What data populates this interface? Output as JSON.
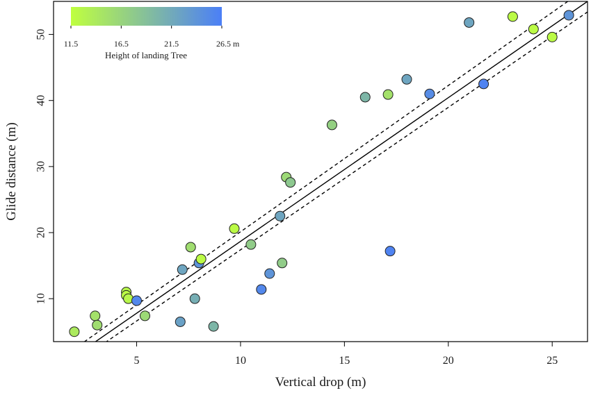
{
  "chart_data": {
    "type": "scatter",
    "title": "",
    "xlabel": "Vertical drop (m)",
    "ylabel": "Glide distance (m)",
    "xlim": [
      1.0,
      26.7
    ],
    "ylim": [
      3.5,
      55.0
    ],
    "xticks": [
      5,
      10,
      15,
      20,
      25
    ],
    "yticks": [
      10,
      20,
      30,
      40,
      50
    ],
    "grid": false,
    "colorbar": {
      "title": "Height of landing Tree",
      "tick_values": [
        11.5,
        16.5,
        21.5,
        26.5
      ],
      "tick_labels": [
        "11.5",
        "16.5",
        "21.5",
        "26.5 m"
      ],
      "range": [
        11.5,
        26.5
      ],
      "colors": [
        "#bfff3f",
        "#4b7ff7"
      ],
      "placement": "top-left"
    },
    "fit_line": {
      "x": [
        1.0,
        26.7
      ],
      "y": [
        -0.9,
        55.0
      ]
    },
    "fit_bands": [
      {
        "x": [
          1.0,
          26.7
        ],
        "y": [
          0.2,
          57.1
        ]
      },
      {
        "x": [
          1.0,
          26.7
        ],
        "y": [
          -2.0,
          53.4
        ]
      }
    ],
    "points": [
      {
        "x": 2.0,
        "y": 5.0,
        "h": 14.0
      },
      {
        "x": 3.0,
        "y": 7.4,
        "h": 15.0
      },
      {
        "x": 3.1,
        "y": 6.0,
        "h": 15.5
      },
      {
        "x": 4.5,
        "y": 11.0,
        "h": 12.5
      },
      {
        "x": 4.5,
        "y": 10.5,
        "h": 12.0
      },
      {
        "x": 4.6,
        "y": 10.0,
        "h": 12.5
      },
      {
        "x": 5.0,
        "y": 9.7,
        "h": 25.5
      },
      {
        "x": 5.4,
        "y": 7.4,
        "h": 16.0
      },
      {
        "x": 7.1,
        "y": 6.5,
        "h": 22.5
      },
      {
        "x": 7.2,
        "y": 14.4,
        "h": 22.0
      },
      {
        "x": 7.6,
        "y": 17.8,
        "h": 15.5
      },
      {
        "x": 7.8,
        "y": 10.0,
        "h": 21.0
      },
      {
        "x": 8.0,
        "y": 15.4,
        "h": 24.0
      },
      {
        "x": 8.1,
        "y": 16.0,
        "h": 12.0
      },
      {
        "x": 8.7,
        "y": 5.8,
        "h": 20.0
      },
      {
        "x": 9.7,
        "y": 20.6,
        "h": 12.0
      },
      {
        "x": 10.5,
        "y": 18.2,
        "h": 17.5
      },
      {
        "x": 11.0,
        "y": 11.4,
        "h": 25.5
      },
      {
        "x": 11.4,
        "y": 13.8,
        "h": 24.0
      },
      {
        "x": 11.9,
        "y": 22.5,
        "h": 22.0
      },
      {
        "x": 12.0,
        "y": 15.4,
        "h": 17.5
      },
      {
        "x": 12.2,
        "y": 28.4,
        "h": 16.0
      },
      {
        "x": 12.4,
        "y": 27.6,
        "h": 18.0
      },
      {
        "x": 14.4,
        "y": 36.3,
        "h": 17.0
      },
      {
        "x": 16.0,
        "y": 40.5,
        "h": 20.0
      },
      {
        "x": 17.1,
        "y": 40.9,
        "h": 15.0
      },
      {
        "x": 17.2,
        "y": 17.2,
        "h": 26.0
      },
      {
        "x": 18.0,
        "y": 43.2,
        "h": 22.0
      },
      {
        "x": 19.1,
        "y": 41.0,
        "h": 25.0
      },
      {
        "x": 21.0,
        "y": 51.8,
        "h": 22.0
      },
      {
        "x": 21.7,
        "y": 42.5,
        "h": 26.0
      },
      {
        "x": 23.1,
        "y": 52.7,
        "h": 12.0
      },
      {
        "x": 24.1,
        "y": 50.8,
        "h": 12.0
      },
      {
        "x": 25.0,
        "y": 49.6,
        "h": 12.0
      },
      {
        "x": 25.8,
        "y": 52.9,
        "h": 24.0
      }
    ]
  }
}
